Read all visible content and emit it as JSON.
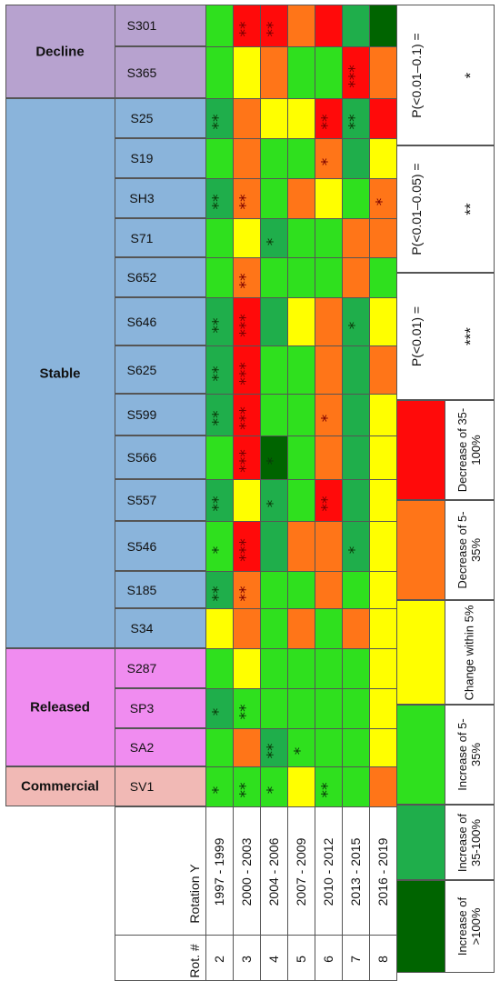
{
  "chart_data": {
    "type": "heatmap",
    "title": "",
    "rotation_header": "Rotation Y",
    "rot_header": "Rot. #",
    "periods": [
      {
        "rot": "2",
        "years": "1997 - 1999"
      },
      {
        "rot": "3",
        "years": "2000 - 2003"
      },
      {
        "rot": "4",
        "years": "2004 - 2006"
      },
      {
        "rot": "5",
        "years": "2007 - 2009"
      },
      {
        "rot": "6",
        "years": "2010 - 2012"
      },
      {
        "rot": "7",
        "years": "2013 - 2015"
      },
      {
        "rot": "8",
        "years": "2016 - 2019"
      }
    ],
    "groups": [
      {
        "name": "Decline",
        "color": "#b7a2cf",
        "rows": [
          {
            "name": "S301",
            "cells": [
              "i",
              "d2",
              "d2",
              "d",
              "d2",
              "i2",
              "i3"
            ],
            "stars": [
              "",
              "**",
              "**",
              "",
              "",
              "",
              ""
            ]
          },
          {
            "name": "S365",
            "cells": [
              "i",
              "c",
              "d",
              "i",
              "i",
              "d2",
              "d"
            ],
            "stars": [
              "",
              "",
              "",
              "",
              "",
              "***",
              ""
            ]
          }
        ]
      },
      {
        "name": "Stable",
        "color": "#8ab4db",
        "rows": [
          {
            "name": "S25",
            "cells": [
              "i2",
              "d",
              "c",
              "c",
              "d2",
              "i2",
              "d2"
            ],
            "stars": [
              "**",
              "",
              "",
              "",
              "**",
              "**",
              ""
            ]
          },
          {
            "name": "S19",
            "cells": [
              "i",
              "d",
              "i",
              "i",
              "d",
              "i2",
              "c"
            ],
            "stars": [
              "",
              "",
              "",
              "",
              "*",
              "",
              ""
            ]
          },
          {
            "name": "SH3",
            "cells": [
              "i2",
              "d",
              "i",
              "d",
              "c",
              "i",
              "d"
            ],
            "stars": [
              "**",
              "**",
              "",
              "",
              "",
              "",
              "*"
            ]
          },
          {
            "name": "S71",
            "cells": [
              "i",
              "c",
              "i2",
              "i",
              "i",
              "d",
              "d"
            ],
            "stars": [
              "",
              "",
              "*",
              "",
              "",
              "",
              ""
            ]
          },
          {
            "name": "S652",
            "cells": [
              "i",
              "d",
              "i",
              "i",
              "i",
              "d",
              "i"
            ],
            "stars": [
              "",
              "**",
              "",
              "",
              "",
              "",
              ""
            ]
          },
          {
            "name": "S646",
            "cells": [
              "i2",
              "d2",
              "i2",
              "c",
              "d",
              "i2",
              "c"
            ],
            "stars": [
              "**",
              "***",
              "",
              "",
              "",
              "*",
              ""
            ]
          },
          {
            "name": "S625",
            "cells": [
              "i2",
              "d2",
              "i",
              "i",
              "d",
              "i2",
              "d"
            ],
            "stars": [
              "**",
              "***",
              "",
              "",
              "",
              "",
              ""
            ]
          },
          {
            "name": "S599",
            "cells": [
              "i2",
              "d2",
              "i",
              "i",
              "d",
              "i2",
              "c"
            ],
            "stars": [
              "**",
              "***",
              "",
              "",
              "*",
              "",
              ""
            ]
          },
          {
            "name": "S566",
            "cells": [
              "i",
              "d2",
              "i3",
              "i",
              "d",
              "i2",
              "c"
            ],
            "stars": [
              "",
              "***",
              "*",
              "",
              "",
              "",
              ""
            ]
          },
          {
            "name": "S557",
            "cells": [
              "i2",
              "c",
              "i2",
              "i",
              "d2",
              "i2",
              "c"
            ],
            "stars": [
              "**",
              "",
              "*",
              "",
              "**",
              "",
              ""
            ]
          },
          {
            "name": "S546",
            "cells": [
              "i",
              "d2",
              "i2",
              "d",
              "d",
              "i2",
              "c"
            ],
            "stars": [
              "*",
              "***",
              "",
              "",
              "",
              "*",
              ""
            ]
          },
          {
            "name": "S185",
            "cells": [
              "i2",
              "d",
              "i",
              "i",
              "d",
              "i",
              "c"
            ],
            "stars": [
              "**",
              "**",
              "",
              "",
              "",
              "",
              ""
            ]
          },
          {
            "name": "S34",
            "cells": [
              "c",
              "d",
              "i",
              "d",
              "i",
              "d",
              "c"
            ],
            "stars": [
              "",
              "",
              "",
              "",
              "",
              "",
              ""
            ]
          }
        ]
      },
      {
        "name": "Released",
        "color": "#f08cf0",
        "rows": [
          {
            "name": "S287",
            "cells": [
              "i",
              "c",
              "i",
              "i",
              "i",
              "i",
              "c"
            ],
            "stars": [
              "",
              "",
              "",
              "",
              "",
              "",
              ""
            ]
          },
          {
            "name": "SP3",
            "cells": [
              "i2",
              "i",
              "i",
              "i",
              "i",
              "i",
              "c"
            ],
            "stars": [
              "*",
              "**",
              "",
              "",
              "",
              "",
              ""
            ]
          },
          {
            "name": "SA2",
            "cells": [
              "i",
              "d",
              "i2",
              "i",
              "i",
              "i",
              "c"
            ],
            "stars": [
              "",
              "",
              "**",
              "*",
              "",
              "",
              ""
            ]
          }
        ]
      },
      {
        "name": "Commercial",
        "color": "#f1b9b5",
        "rows": [
          {
            "name": "SV1",
            "cells": [
              "i",
              "i",
              "i",
              "c",
              "i",
              "i",
              "d"
            ],
            "stars": [
              "*",
              "**",
              "*",
              "",
              "**",
              "",
              ""
            ]
          }
        ]
      }
    ],
    "legend": [
      {
        "key": "i3",
        "color": "#006400",
        "label": "Increase of >100%"
      },
      {
        "key": "i2",
        "color": "#1fae4b",
        "label": "Increase of 35-100%"
      },
      {
        "key": "i",
        "color": "#2fe01e",
        "label": "Increase of 5-35%"
      },
      {
        "key": "c",
        "color": "#ffff00",
        "label": "Change within 5%"
      },
      {
        "key": "d",
        "color": "#ff7518",
        "label": "Decrease of 5-35%"
      },
      {
        "key": "d2",
        "color": "#ff0a0a",
        "label": "Decrease of 35-100%"
      }
    ],
    "significance": [
      {
        "stars": "***",
        "label": "P(<0.01) ="
      },
      {
        "stars": "**",
        "label": "P(<0.01–0.05) ="
      },
      {
        "stars": "*",
        "label": "P(<0.01–0.1) ="
      }
    ]
  }
}
